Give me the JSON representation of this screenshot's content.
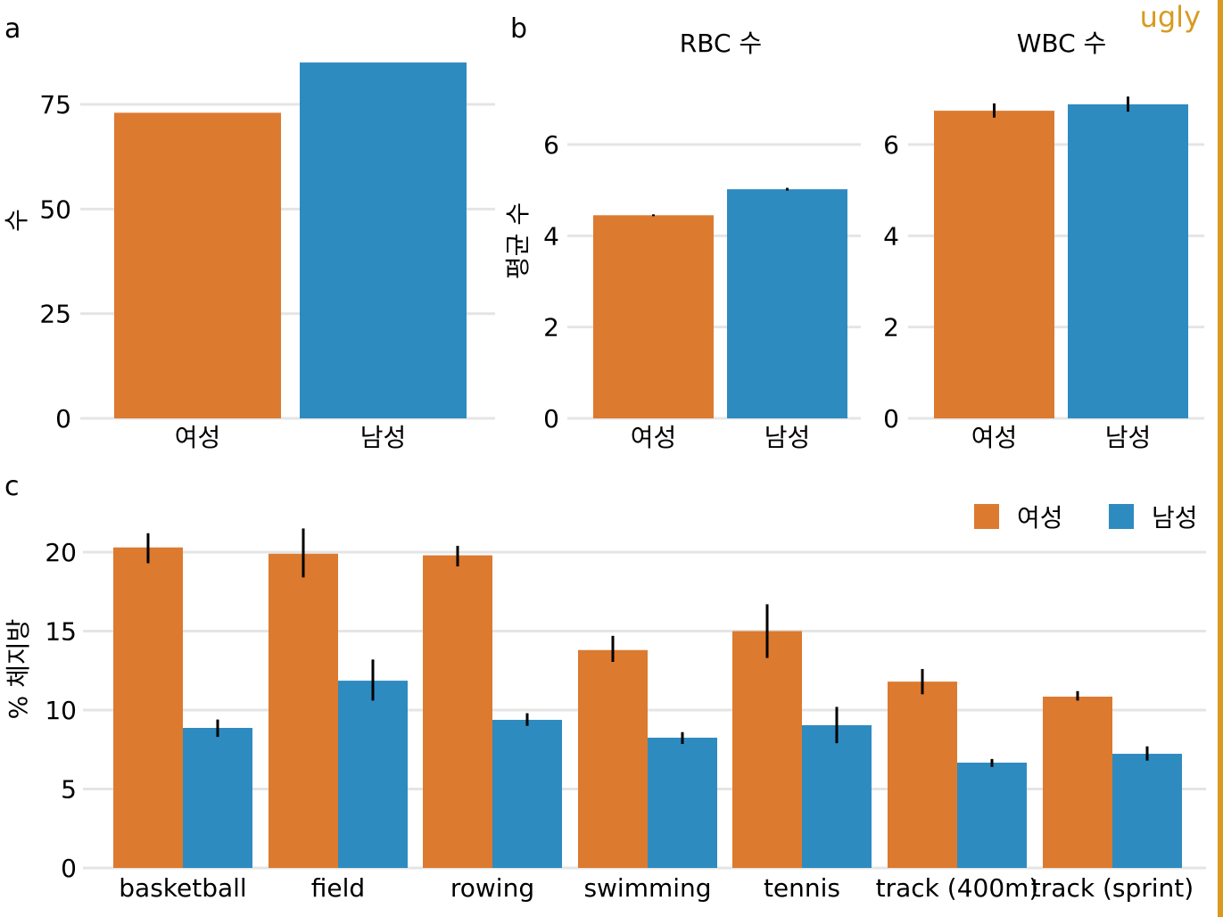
{
  "watermark": "ugly",
  "colors": {
    "female": "#dc7a30",
    "male": "#2e8bc0",
    "grid": "#e5e5e5",
    "accent_bar": "#d89a20",
    "error": "#000000"
  },
  "chart_data": [
    {
      "panel": "a",
      "type": "bar",
      "title": "",
      "xlabel": "",
      "ylabel": "수",
      "categories": [
        "여성",
        "남성"
      ],
      "values": [
        73,
        85
      ],
      "ylim": [
        0,
        90
      ],
      "yticks": [
        0,
        25,
        50,
        75
      ],
      "grid": true
    },
    {
      "panel": "b",
      "type": "bar",
      "ylabel": "평균 수",
      "facets": [
        {
          "title": "RBC 수",
          "categories": [
            "여성",
            "남성"
          ],
          "values": [
            4.45,
            5.02
          ],
          "errors": [
            [
              4.43,
              4.47
            ],
            [
              4.99,
              5.05
            ]
          ]
        },
        {
          "title": "WBC 수",
          "categories": [
            "여성",
            "남성"
          ],
          "values": [
            6.74,
            6.88
          ],
          "errors": [
            [
              6.59,
              6.9
            ],
            [
              6.72,
              7.05
            ]
          ]
        }
      ],
      "ylim": [
        0,
        7.2
      ],
      "yticks": [
        0,
        2,
        4,
        6
      ],
      "grid": true
    },
    {
      "panel": "c",
      "type": "bar",
      "xlabel": "",
      "ylabel": "% 체지방",
      "categories": [
        "basketball",
        "field",
        "rowing",
        "swimming",
        "tennis",
        "track (400m)",
        "track (sprint)"
      ],
      "series": [
        {
          "name": "여성",
          "values": [
            20.3,
            19.9,
            19.8,
            13.8,
            15.0,
            11.8,
            10.85
          ],
          "errors": [
            [
              19.3,
              21.2
            ],
            [
              18.4,
              21.5
            ],
            [
              19.1,
              20.4
            ],
            [
              13.05,
              14.7
            ],
            [
              13.3,
              16.7
            ],
            [
              11.0,
              12.6
            ],
            [
              10.6,
              11.2
            ]
          ]
        },
        {
          "name": "남성",
          "values": [
            8.87,
            11.86,
            9.38,
            8.25,
            9.04,
            6.67,
            7.23
          ],
          "errors": [
            [
              8.3,
              9.4
            ],
            [
              10.6,
              13.2
            ],
            [
              9.0,
              9.8
            ],
            [
              7.85,
              8.6
            ],
            [
              7.9,
              10.2
            ],
            [
              6.4,
              6.9
            ],
            [
              6.8,
              7.7
            ]
          ]
        }
      ],
      "ylim": [
        0,
        22
      ],
      "yticks": [
        0,
        5,
        10,
        15,
        20
      ],
      "legend": {
        "placement": "top-right",
        "entries": [
          "여성",
          "남성"
        ]
      },
      "grid": true
    }
  ]
}
